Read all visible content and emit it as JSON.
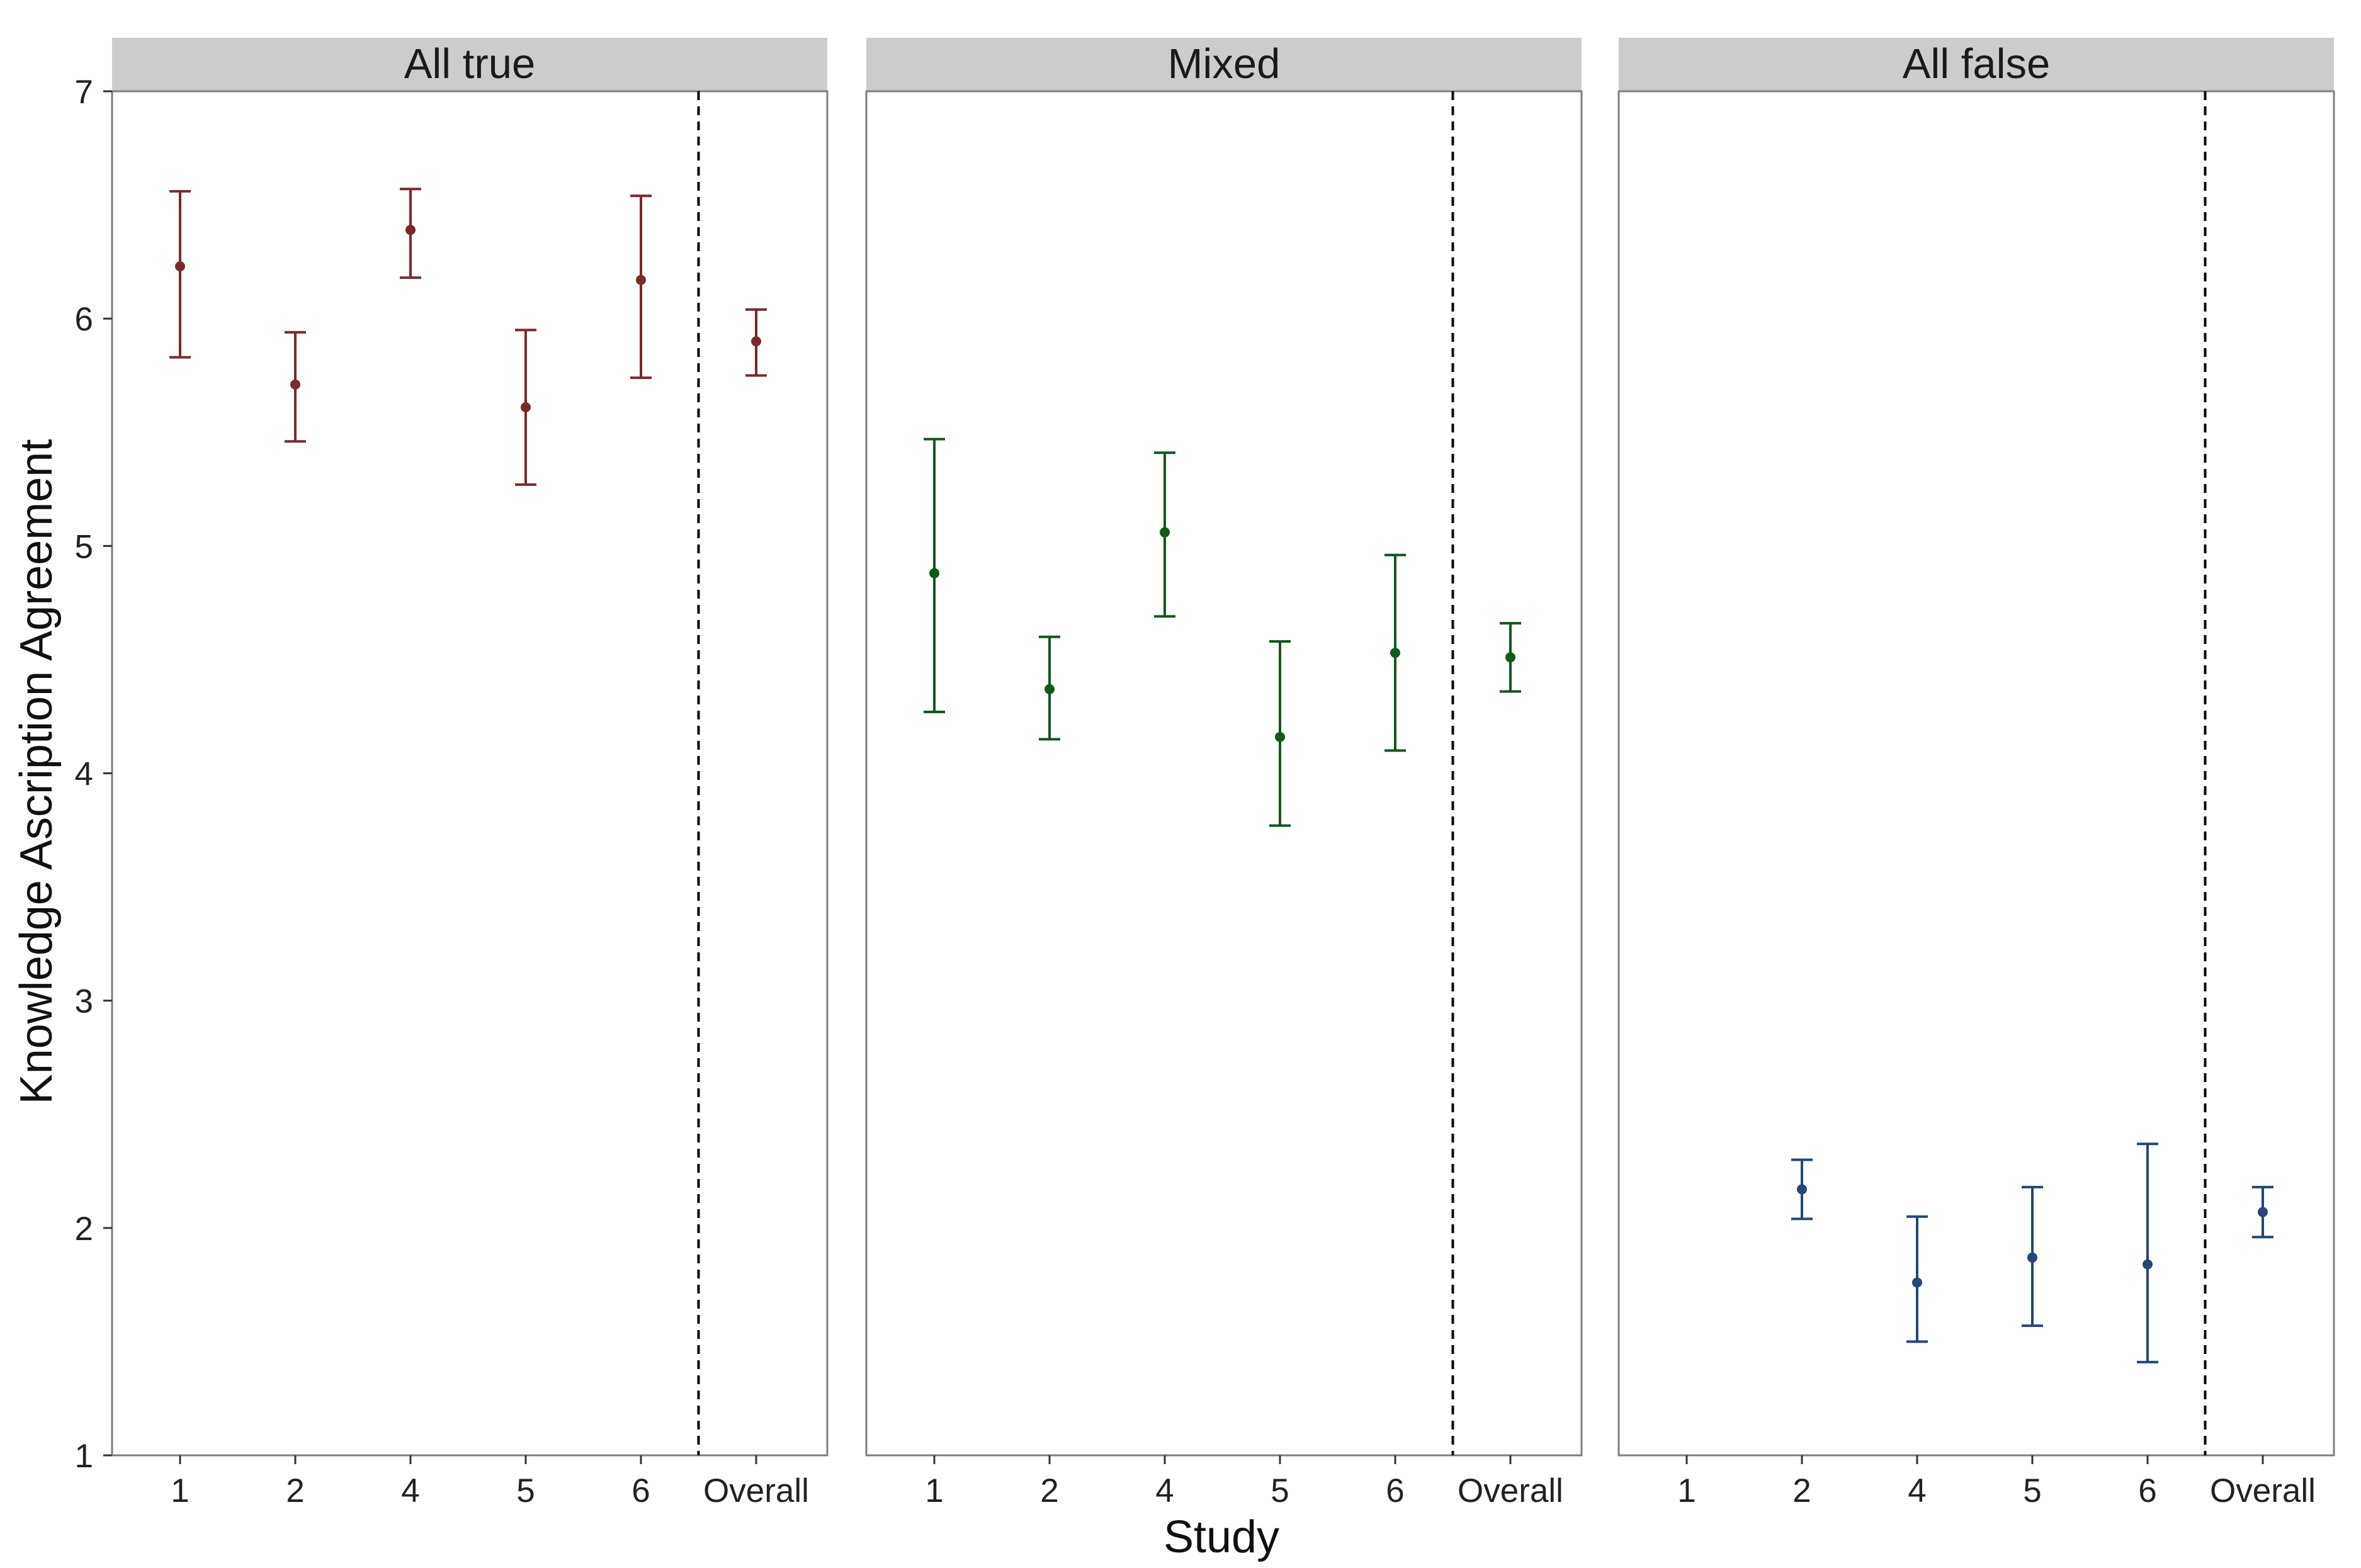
{
  "chart_data": {
    "type": "scatter",
    "subtype": "point-errorbar-facets",
    "xlabel": "Study",
    "ylabel": "Knowledge Ascription Agreement",
    "ylim": [
      1,
      7
    ],
    "yticks": [
      1,
      2,
      3,
      4,
      5,
      6,
      7
    ],
    "categories": [
      "1",
      "2",
      "4",
      "5",
      "6",
      "Overall"
    ],
    "grid": false,
    "legend": "none",
    "divider_between": [
      "6",
      "Overall"
    ],
    "panels": [
      {
        "name": "All true",
        "color": "#7B2A2A",
        "points": [
          {
            "x": "1",
            "y": 6.23,
            "low": 5.83,
            "high": 6.56
          },
          {
            "x": "2",
            "y": 5.71,
            "low": 5.46,
            "high": 5.94
          },
          {
            "x": "4",
            "y": 6.39,
            "low": 6.18,
            "high": 6.57
          },
          {
            "x": "5",
            "y": 5.61,
            "low": 5.27,
            "high": 5.95
          },
          {
            "x": "6",
            "y": 6.17,
            "low": 5.74,
            "high": 6.54
          },
          {
            "x": "Overall",
            "y": 5.9,
            "low": 5.75,
            "high": 6.04
          }
        ]
      },
      {
        "name": "Mixed",
        "color": "#0E5A17",
        "points": [
          {
            "x": "1",
            "y": 4.88,
            "low": 4.27,
            "high": 5.47
          },
          {
            "x": "2",
            "y": 4.37,
            "low": 4.15,
            "high": 4.6
          },
          {
            "x": "4",
            "y": 5.06,
            "low": 4.69,
            "high": 5.41
          },
          {
            "x": "5",
            "y": 4.16,
            "low": 3.77,
            "high": 4.58
          },
          {
            "x": "6",
            "y": 4.53,
            "low": 4.1,
            "high": 4.96
          },
          {
            "x": "Overall",
            "y": 4.51,
            "low": 4.36,
            "high": 4.66
          }
        ]
      },
      {
        "name": "All false",
        "color": "#23477A",
        "points": [
          {
            "x": "2",
            "y": 2.17,
            "low": 2.04,
            "high": 2.3
          },
          {
            "x": "4",
            "y": 1.76,
            "low": 1.5,
            "high": 2.05
          },
          {
            "x": "5",
            "y": 1.87,
            "low": 1.57,
            "high": 2.18
          },
          {
            "x": "6",
            "y": 1.84,
            "low": 1.41,
            "high": 2.37
          },
          {
            "x": "Overall",
            "y": 2.07,
            "low": 1.96,
            "high": 2.18
          }
        ]
      }
    ]
  }
}
